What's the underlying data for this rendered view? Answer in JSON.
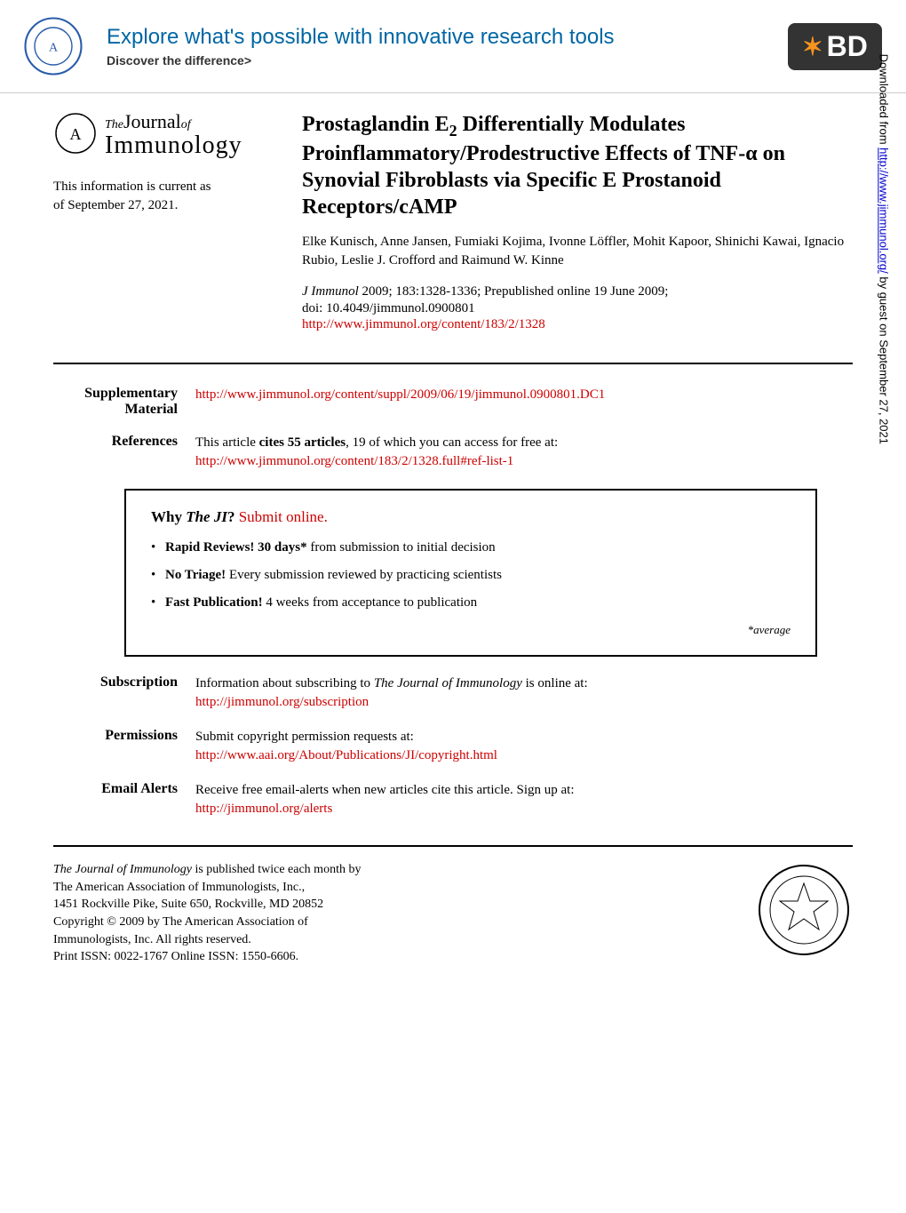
{
  "banner": {
    "headline": "Explore what's possible with innovative research tools",
    "subhead": "Discover the difference>",
    "bd_label": "BD"
  },
  "journal": {
    "the": "The",
    "journal": "Journal",
    "of": "of",
    "immunology": "Immunology"
  },
  "currency": {
    "line1": "This information is current as",
    "line2": "of September 27, 2021."
  },
  "article": {
    "title_html": "Prostaglandin E<sub>2</sub> Differentially Modulates Proinflammatory/Prodestructive Effects of TNF-α on Synovial Fibroblasts via Specific E Prostanoid Receptors/cAMP",
    "authors": "Elke Kunisch, Anne Jansen, Fumiaki Kojima, Ivonne Löffler, Mohit Kapoor, Shinichi Kawai, Ignacio Rubio, Leslie J. Crofford and Raimund W. Kinne",
    "citation_journal": "J Immunol",
    "citation_rest": " 2009; 183:1328-1336; Prepublished online 19 June 2009;",
    "doi": "doi: 10.4049/jimmunol.0900801",
    "url": "http://www.jimmunol.org/content/183/2/1328"
  },
  "meta": {
    "supplementary_label": "Supplementary Material",
    "supplementary_url": "http://www.jimmunol.org/content/suppl/2009/06/19/jimmunol.0900801.DC1",
    "references_label": "References",
    "references_text": "This article ",
    "references_bold": "cites 55 articles",
    "references_text2": ", 19 of which you can access for free at:",
    "references_url": "http://www.jimmunol.org/content/183/2/1328.full#ref-list-1",
    "subscription_label": "Subscription",
    "subscription_text": "Information about subscribing to ",
    "subscription_italic": "The Journal of Immunology",
    "subscription_text2": " is online at:",
    "subscription_url": "http://jimmunol.org/subscription",
    "permissions_label": "Permissions",
    "permissions_text": "Submit copyright permission requests at:",
    "permissions_url": "http://www.aai.org/About/Publications/JI/copyright.html",
    "alerts_label": "Email Alerts",
    "alerts_text": "Receive free email-alerts when new articles cite this article. Sign up at:",
    "alerts_url": "http://jimmunol.org/alerts"
  },
  "whybox": {
    "title_prefix": "Why ",
    "title_ji": "The JI",
    "title_suffix": "? ",
    "title_link": "Submit online.",
    "item1_bold": "Rapid Reviews! 30 days*",
    "item1_rest": " from submission to initial decision",
    "item2_bold": "No Triage!",
    "item2_rest": " Every submission reviewed by practicing scientists",
    "item3_bold": "Fast Publication!",
    "item3_rest": " 4 weeks from acceptance to publication",
    "footnote": "*average"
  },
  "footer": {
    "line1_italic": "The Journal of Immunology",
    "line1_rest": " is published twice each month by",
    "line2": "The American Association of Immunologists, Inc.,",
    "line3": "1451 Rockville Pike, Suite 650, Rockville, MD 20852",
    "line4": "Copyright © 2009 by The American Association of",
    "line5": "Immunologists, Inc. All rights reserved.",
    "line6": "Print ISSN: 0022-1767 Online ISSN: 1550-6606."
  },
  "sidebar": {
    "prefix": "Downloaded from ",
    "url": "http://www.jimmunol.org/",
    "suffix": " by guest on September 27, 2021"
  },
  "colors": {
    "link_red": "#cc0000",
    "banner_blue": "#0066a4",
    "bd_orange": "#f7941e"
  }
}
